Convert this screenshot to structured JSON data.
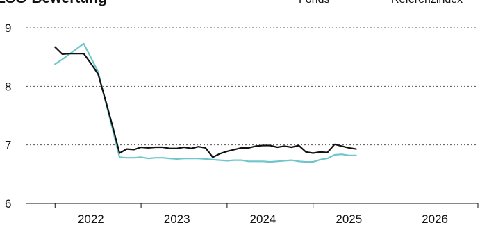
{
  "chart_data": {
    "type": "line",
    "title": "ESG-Bewertung",
    "xlabel": "",
    "ylabel": "",
    "ylim": [
      6,
      9
    ],
    "xlim": [
      "2021-09",
      "2026-12"
    ],
    "y_ticks": [
      "6",
      "7",
      "8",
      "9"
    ],
    "x_ticks": [
      {
        "label": "2022",
        "x": "2022-06"
      },
      {
        "label": "2023",
        "x": "2023-06"
      },
      {
        "label": "2024",
        "x": "2024-06"
      },
      {
        "label": "2025",
        "x": "2025-06"
      },
      {
        "label": "2026",
        "x": "2026-06"
      }
    ],
    "grid": true,
    "legend_position": "top-right",
    "series": [
      {
        "name": "Fonds",
        "color": "#111111",
        "points": [
          [
            "2022-01",
            8.67
          ],
          [
            "2022-02",
            8.55
          ],
          [
            "2022-03",
            8.56
          ],
          [
            "2022-04",
            8.56
          ],
          [
            "2022-05",
            8.56
          ],
          [
            "2022-06",
            8.39
          ],
          [
            "2022-07",
            8.21
          ],
          [
            "2022-08",
            7.78
          ],
          [
            "2022-09",
            7.33
          ],
          [
            "2022-10",
            6.86
          ],
          [
            "2022-11",
            6.93
          ],
          [
            "2022-12",
            6.92
          ],
          [
            "2023-01",
            6.96
          ],
          [
            "2023-02",
            6.95
          ],
          [
            "2023-03",
            6.96
          ],
          [
            "2023-04",
            6.96
          ],
          [
            "2023-05",
            6.94
          ],
          [
            "2023-06",
            6.94
          ],
          [
            "2023-07",
            6.96
          ],
          [
            "2023-08",
            6.94
          ],
          [
            "2023-09",
            6.97
          ],
          [
            "2023-10",
            6.95
          ],
          [
            "2023-11",
            6.79
          ],
          [
            "2023-12",
            6.85
          ],
          [
            "2024-01",
            6.89
          ],
          [
            "2024-02",
            6.92
          ],
          [
            "2024-03",
            6.95
          ],
          [
            "2024-04",
            6.95
          ],
          [
            "2024-05",
            6.98
          ],
          [
            "2024-06",
            6.99
          ],
          [
            "2024-07",
            6.99
          ],
          [
            "2024-08",
            6.96
          ],
          [
            "2024-09",
            6.98
          ],
          [
            "2024-10",
            6.96
          ],
          [
            "2024-11",
            6.99
          ],
          [
            "2024-12",
            6.88
          ],
          [
            "2025-01",
            6.86
          ],
          [
            "2025-02",
            6.88
          ],
          [
            "2025-03",
            6.87
          ],
          [
            "2025-04",
            7.01
          ],
          [
            "2025-05",
            6.98
          ],
          [
            "2025-06",
            6.95
          ],
          [
            "2025-07",
            6.93
          ]
        ]
      },
      {
        "name": "Referenzindex",
        "color": "#6ec6cc",
        "points": [
          [
            "2022-01",
            8.38
          ],
          [
            "2022-02",
            8.46
          ],
          [
            "2022-03",
            8.55
          ],
          [
            "2022-04",
            8.64
          ],
          [
            "2022-05",
            8.73
          ],
          [
            "2022-06",
            8.49
          ],
          [
            "2022-07",
            8.25
          ],
          [
            "2022-08",
            7.76
          ],
          [
            "2022-09",
            7.28
          ],
          [
            "2022-10",
            6.79
          ],
          [
            "2022-11",
            6.78
          ],
          [
            "2022-12",
            6.78
          ],
          [
            "2023-01",
            6.79
          ],
          [
            "2023-02",
            6.77
          ],
          [
            "2023-03",
            6.78
          ],
          [
            "2023-04",
            6.78
          ],
          [
            "2023-05",
            6.77
          ],
          [
            "2023-06",
            6.76
          ],
          [
            "2023-07",
            6.77
          ],
          [
            "2023-08",
            6.77
          ],
          [
            "2023-09",
            6.77
          ],
          [
            "2023-10",
            6.76
          ],
          [
            "2023-11",
            6.75
          ],
          [
            "2023-12",
            6.74
          ],
          [
            "2024-01",
            6.73
          ],
          [
            "2024-02",
            6.74
          ],
          [
            "2024-03",
            6.74
          ],
          [
            "2024-04",
            6.72
          ],
          [
            "2024-05",
            6.72
          ],
          [
            "2024-06",
            6.72
          ],
          [
            "2024-07",
            6.71
          ],
          [
            "2024-08",
            6.72
          ],
          [
            "2024-09",
            6.73
          ],
          [
            "2024-10",
            6.74
          ],
          [
            "2024-11",
            6.72
          ],
          [
            "2024-12",
            6.71
          ],
          [
            "2025-01",
            6.71
          ],
          [
            "2025-02",
            6.75
          ],
          [
            "2025-03",
            6.77
          ],
          [
            "2025-04",
            6.83
          ],
          [
            "2025-05",
            6.84
          ],
          [
            "2025-06",
            6.82
          ],
          [
            "2025-07",
            6.82
          ]
        ]
      }
    ]
  }
}
